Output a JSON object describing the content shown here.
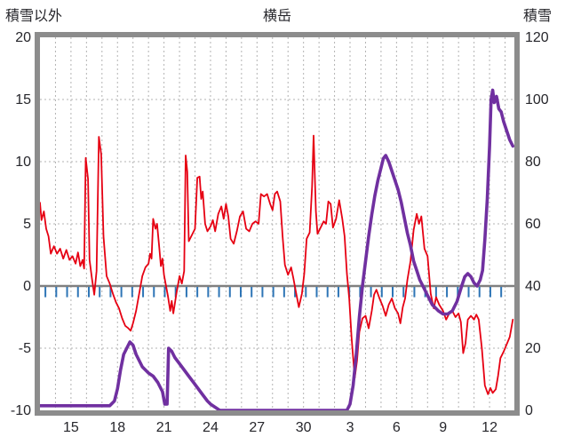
{
  "chart_data": {
    "type": "line",
    "title": "横岳",
    "left_axis": {
      "label": "積雪以外",
      "min": -10,
      "max": 20,
      "ticks": [
        20,
        15,
        10,
        5,
        0,
        -5,
        -10
      ]
    },
    "right_axis": {
      "label": "積雪",
      "min": 0,
      "max": 120,
      "ticks": [
        120,
        100,
        80,
        60,
        40,
        20,
        0
      ]
    },
    "x_axis": {
      "domain": [
        0,
        30.6
      ],
      "day_gridlines": {
        "from": 1,
        "to": 30,
        "step": 1
      },
      "tick_positions": [
        2,
        5,
        8,
        11,
        14,
        17,
        20,
        23,
        26,
        29
      ],
      "tick_labels": [
        "15",
        "18",
        "21",
        "24",
        "27",
        "30",
        "3",
        "6",
        "9",
        "12"
      ]
    },
    "style": {
      "background": "#ffffff",
      "frame_color": "#8c8c8c",
      "gridline_color": "#b3b3b3",
      "zero_line_color": "#808080",
      "text_color": "#26262b",
      "temperature_color": "#e60012",
      "snow_color": "#7030a0",
      "tick_mark_color": "#2e75b6"
    },
    "tick_marks": {
      "name": "precipitation-tick",
      "color": "#2e75b6",
      "start": 0.35,
      "step": 0.7,
      "count": 43,
      "value": -0.9
    },
    "series": [
      {
        "name": "temperature",
        "axis": "left",
        "color": "#e60012",
        "width": 1.8,
        "points": [
          [
            0,
            6.7
          ],
          [
            0.1,
            5.3
          ],
          [
            0.25,
            6.0
          ],
          [
            0.4,
            4.6
          ],
          [
            0.55,
            4.0
          ],
          [
            0.7,
            2.6
          ],
          [
            0.9,
            3.2
          ],
          [
            1.1,
            2.6
          ],
          [
            1.3,
            3.0
          ],
          [
            1.5,
            2.2
          ],
          [
            1.7,
            2.9
          ],
          [
            1.9,
            2.1
          ],
          [
            2.1,
            2.4
          ],
          [
            2.3,
            1.8
          ],
          [
            2.45,
            2.7
          ],
          [
            2.6,
            1.6
          ],
          [
            2.75,
            2.1
          ],
          [
            2.85,
            1.4
          ],
          [
            2.95,
            10.3
          ],
          [
            3.1,
            8.6
          ],
          [
            3.2,
            2.1
          ],
          [
            3.35,
            0.6
          ],
          [
            3.5,
            -0.7
          ],
          [
            3.65,
            1.2
          ],
          [
            3.8,
            12.0
          ],
          [
            3.95,
            10.6
          ],
          [
            4.1,
            4.0
          ],
          [
            4.3,
            0.8
          ],
          [
            4.5,
            0.2
          ],
          [
            4.7,
            -0.6
          ],
          [
            4.9,
            -1.3
          ],
          [
            5.1,
            -1.8
          ],
          [
            5.3,
            -2.6
          ],
          [
            5.5,
            -3.2
          ],
          [
            5.7,
            -3.4
          ],
          [
            5.85,
            -3.6
          ],
          [
            6.0,
            -3.0
          ],
          [
            6.2,
            -2.0
          ],
          [
            6.4,
            -0.6
          ],
          [
            6.6,
            0.8
          ],
          [
            6.8,
            1.5
          ],
          [
            7.0,
            1.8
          ],
          [
            7.1,
            2.6
          ],
          [
            7.2,
            2.2
          ],
          [
            7.3,
            5.4
          ],
          [
            7.45,
            4.6
          ],
          [
            7.55,
            5.0
          ],
          [
            7.7,
            3.0
          ],
          [
            7.8,
            1.6
          ],
          [
            7.9,
            2.2
          ],
          [
            8.0,
            0.9
          ],
          [
            8.1,
            0.2
          ],
          [
            8.25,
            -0.8
          ],
          [
            8.4,
            -2.0
          ],
          [
            8.5,
            -1.2
          ],
          [
            8.6,
            -2.2
          ],
          [
            8.8,
            -0.6
          ],
          [
            9.0,
            0.8
          ],
          [
            9.15,
            0.2
          ],
          [
            9.3,
            1.2
          ],
          [
            9.4,
            10.5
          ],
          [
            9.5,
            9.2
          ],
          [
            9.6,
            3.6
          ],
          [
            9.8,
            4.1
          ],
          [
            10.0,
            4.6
          ],
          [
            10.15,
            8.7
          ],
          [
            10.3,
            8.8
          ],
          [
            10.4,
            7.0
          ],
          [
            10.5,
            7.6
          ],
          [
            10.65,
            5.0
          ],
          [
            10.8,
            4.4
          ],
          [
            11.0,
            4.8
          ],
          [
            11.15,
            5.3
          ],
          [
            11.3,
            4.4
          ],
          [
            11.5,
            5.8
          ],
          [
            11.7,
            6.4
          ],
          [
            11.85,
            5.4
          ],
          [
            12.0,
            6.6
          ],
          [
            12.15,
            5.6
          ],
          [
            12.3,
            3.8
          ],
          [
            12.5,
            3.4
          ],
          [
            12.7,
            4.4
          ],
          [
            12.9,
            5.6
          ],
          [
            13.1,
            6.0
          ],
          [
            13.3,
            4.6
          ],
          [
            13.5,
            4.4
          ],
          [
            13.7,
            5.0
          ],
          [
            13.9,
            5.2
          ],
          [
            14.1,
            5.0
          ],
          [
            14.25,
            7.4
          ],
          [
            14.45,
            7.2
          ],
          [
            14.65,
            7.4
          ],
          [
            14.85,
            6.6
          ],
          [
            15.0,
            6.1
          ],
          [
            15.15,
            7.4
          ],
          [
            15.3,
            7.6
          ],
          [
            15.5,
            6.8
          ],
          [
            15.65,
            4.0
          ],
          [
            15.8,
            1.7
          ],
          [
            16.0,
            0.9
          ],
          [
            16.2,
            1.5
          ],
          [
            16.35,
            0.6
          ],
          [
            16.5,
            -0.4
          ],
          [
            16.7,
            -1.7
          ],
          [
            16.9,
            -0.6
          ],
          [
            17.05,
            1.0
          ],
          [
            17.2,
            3.8
          ],
          [
            17.4,
            4.3
          ],
          [
            17.55,
            8.0
          ],
          [
            17.65,
            12.1
          ],
          [
            17.8,
            6.0
          ],
          [
            17.9,
            4.2
          ],
          [
            18.1,
            4.7
          ],
          [
            18.3,
            5.2
          ],
          [
            18.45,
            5.0
          ],
          [
            18.6,
            6.8
          ],
          [
            18.75,
            6.6
          ],
          [
            18.9,
            4.7
          ],
          [
            19.1,
            5.4
          ],
          [
            19.3,
            6.9
          ],
          [
            19.5,
            5.4
          ],
          [
            19.65,
            4.0
          ],
          [
            19.8,
            1.0
          ],
          [
            19.95,
            -1.0
          ],
          [
            20.1,
            -4.2
          ],
          [
            20.3,
            -7.4
          ],
          [
            20.45,
            -6.0
          ],
          [
            20.6,
            -3.7
          ],
          [
            20.8,
            -2.6
          ],
          [
            21.0,
            -2.4
          ],
          [
            21.2,
            -3.4
          ],
          [
            21.4,
            -2.0
          ],
          [
            21.55,
            -0.7
          ],
          [
            21.7,
            -0.3
          ],
          [
            21.9,
            -1.0
          ],
          [
            22.1,
            -1.6
          ],
          [
            22.3,
            -2.4
          ],
          [
            22.5,
            -1.5
          ],
          [
            22.7,
            -1.0
          ],
          [
            22.9,
            -1.8
          ],
          [
            23.1,
            -2.2
          ],
          [
            23.25,
            -3.0
          ],
          [
            23.4,
            -1.7
          ],
          [
            23.55,
            -1.0
          ],
          [
            23.7,
            0.5
          ],
          [
            23.9,
            2.0
          ],
          [
            24.1,
            4.5
          ],
          [
            24.3,
            5.8
          ],
          [
            24.45,
            5.0
          ],
          [
            24.6,
            5.6
          ],
          [
            24.8,
            3.0
          ],
          [
            25.0,
            2.4
          ],
          [
            25.2,
            -0.6
          ],
          [
            25.4,
            -1.8
          ],
          [
            25.55,
            -0.9
          ],
          [
            25.75,
            -1.5
          ],
          [
            26.0,
            -2.0
          ],
          [
            26.2,
            -2.7
          ],
          [
            26.4,
            -2.2
          ],
          [
            26.6,
            -2.0
          ],
          [
            26.8,
            -2.5
          ],
          [
            27.0,
            -2.2
          ],
          [
            27.15,
            -2.9
          ],
          [
            27.3,
            -5.4
          ],
          [
            27.45,
            -4.6
          ],
          [
            27.6,
            -2.7
          ],
          [
            27.8,
            -2.4
          ],
          [
            28.0,
            -2.7
          ],
          [
            28.15,
            -2.3
          ],
          [
            28.3,
            -2.7
          ],
          [
            28.5,
            -5.0
          ],
          [
            28.7,
            -8.0
          ],
          [
            28.9,
            -8.7
          ],
          [
            29.05,
            -8.2
          ],
          [
            29.2,
            -8.6
          ],
          [
            29.4,
            -8.3
          ],
          [
            29.55,
            -7.2
          ],
          [
            29.7,
            -5.8
          ],
          [
            29.9,
            -5.3
          ],
          [
            30.1,
            -4.7
          ],
          [
            30.3,
            -4.1
          ],
          [
            30.5,
            -2.7
          ]
        ]
      },
      {
        "name": "snow-depth",
        "axis": "right",
        "color": "#7030a0",
        "width": 3.6,
        "points": [
          [
            0,
            1.5
          ],
          [
            0.5,
            1.5
          ],
          [
            1,
            1.5
          ],
          [
            1.5,
            1.5
          ],
          [
            2,
            1.5
          ],
          [
            2.5,
            1.5
          ],
          [
            3,
            1.5
          ],
          [
            3.5,
            1.5
          ],
          [
            4,
            1.5
          ],
          [
            4.5,
            1.5
          ],
          [
            4.8,
            3
          ],
          [
            5.0,
            7
          ],
          [
            5.2,
            13
          ],
          [
            5.4,
            18
          ],
          [
            5.6,
            20
          ],
          [
            5.8,
            22
          ],
          [
            6.0,
            21
          ],
          [
            6.2,
            18
          ],
          [
            6.4,
            16
          ],
          [
            6.6,
            14
          ],
          [
            6.8,
            13
          ],
          [
            7.0,
            12
          ],
          [
            7.3,
            11
          ],
          [
            7.6,
            9
          ],
          [
            7.9,
            6
          ],
          [
            8.05,
            2
          ],
          [
            8.2,
            2
          ],
          [
            8.3,
            20
          ],
          [
            8.5,
            19
          ],
          [
            8.7,
            17
          ],
          [
            9.0,
            15
          ],
          [
            9.3,
            13
          ],
          [
            9.6,
            11
          ],
          [
            9.9,
            9
          ],
          [
            10.2,
            7
          ],
          [
            10.5,
            5
          ],
          [
            10.8,
            3
          ],
          [
            11.0,
            2
          ],
          [
            11.3,
            1
          ],
          [
            11.6,
            0
          ],
          [
            12,
            0
          ],
          [
            13,
            0
          ],
          [
            14,
            0
          ],
          [
            15,
            0
          ],
          [
            16,
            0
          ],
          [
            17,
            0
          ],
          [
            18,
            0
          ],
          [
            19,
            0
          ],
          [
            19.8,
            0
          ],
          [
            20.0,
            2
          ],
          [
            20.2,
            8
          ],
          [
            20.4,
            18
          ],
          [
            20.6,
            30
          ],
          [
            20.8,
            40
          ],
          [
            21.0,
            48
          ],
          [
            21.2,
            56
          ],
          [
            21.4,
            63
          ],
          [
            21.6,
            69
          ],
          [
            21.8,
            74
          ],
          [
            22.0,
            78
          ],
          [
            22.15,
            81
          ],
          [
            22.3,
            82
          ],
          [
            22.5,
            80
          ],
          [
            22.7,
            77
          ],
          [
            22.9,
            74
          ],
          [
            23.1,
            71
          ],
          [
            23.3,
            67
          ],
          [
            23.5,
            62
          ],
          [
            23.7,
            57
          ],
          [
            23.9,
            53
          ],
          [
            24.1,
            48
          ],
          [
            24.3,
            45
          ],
          [
            24.5,
            42
          ],
          [
            24.7,
            40
          ],
          [
            24.9,
            38
          ],
          [
            25.1,
            36
          ],
          [
            25.3,
            34
          ],
          [
            25.5,
            33
          ],
          [
            25.7,
            32
          ],
          [
            26.0,
            31
          ],
          [
            26.3,
            31
          ],
          [
            26.6,
            32
          ],
          [
            26.9,
            35
          ],
          [
            27.2,
            40
          ],
          [
            27.4,
            43
          ],
          [
            27.6,
            44
          ],
          [
            27.8,
            43
          ],
          [
            28.0,
            41
          ],
          [
            28.2,
            40
          ],
          [
            28.4,
            42
          ],
          [
            28.55,
            45
          ],
          [
            28.7,
            55
          ],
          [
            28.85,
            68
          ],
          [
            29.0,
            85
          ],
          [
            29.1,
            100
          ],
          [
            29.2,
            103
          ],
          [
            29.3,
            99
          ],
          [
            29.45,
            101
          ],
          [
            29.6,
            97
          ],
          [
            29.75,
            96
          ],
          [
            29.9,
            93
          ],
          [
            30.1,
            90
          ],
          [
            30.3,
            87
          ],
          [
            30.5,
            85
          ]
        ]
      }
    ]
  }
}
